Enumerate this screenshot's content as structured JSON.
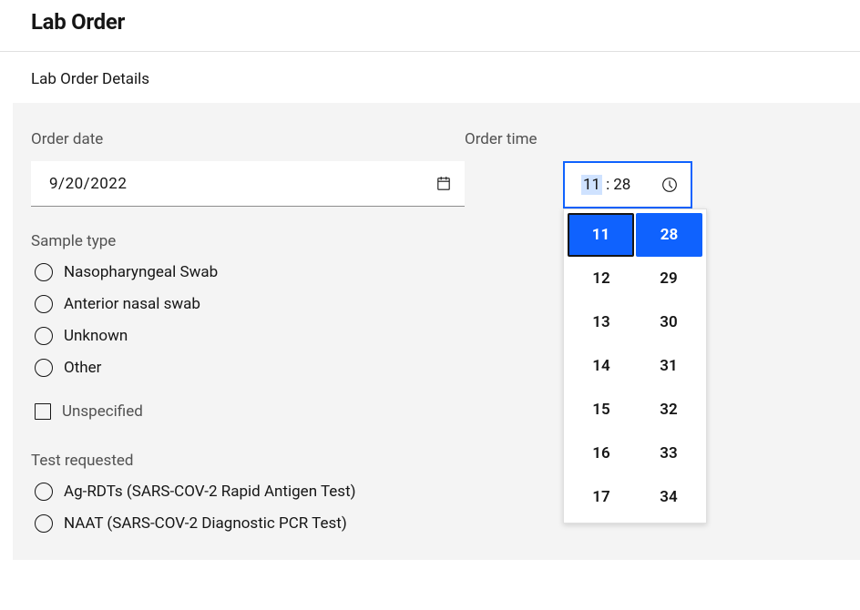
{
  "header": {
    "title": "Lab Order"
  },
  "subheader": {
    "text": "Lab Order Details"
  },
  "orderDate": {
    "label": "Order date",
    "value": "9/20/2022"
  },
  "orderTime": {
    "label": "Order time",
    "hours": "11",
    "minutes": "28",
    "dropdown": {
      "hoursList": [
        "11",
        "12",
        "13",
        "14",
        "15",
        "16",
        "17"
      ],
      "minutesList": [
        "28",
        "29",
        "30",
        "31",
        "32",
        "33",
        "34"
      ],
      "selectedHour": "11",
      "selectedMinute": "28"
    }
  },
  "sampleType": {
    "label": "Sample type",
    "options": [
      "Nasopharyngeal Swab",
      "Anterior nasal swab",
      "Unknown",
      "Other"
    ],
    "unspecifiedLabel": "Unspecified"
  },
  "testRequested": {
    "label": "Test requested",
    "options": [
      "Ag-RDTs (SARS-COV-2 Rapid Antigen Test)",
      "NAAT (SARS-COV-2 Diagnostic PCR Test)"
    ]
  },
  "colors": {
    "focusBlue": "#0f62fe",
    "bgGray": "#f4f4f4",
    "textMuted": "#525252",
    "hhHighlight": "#cfe2ff",
    "border": "#8d8d8d"
  }
}
